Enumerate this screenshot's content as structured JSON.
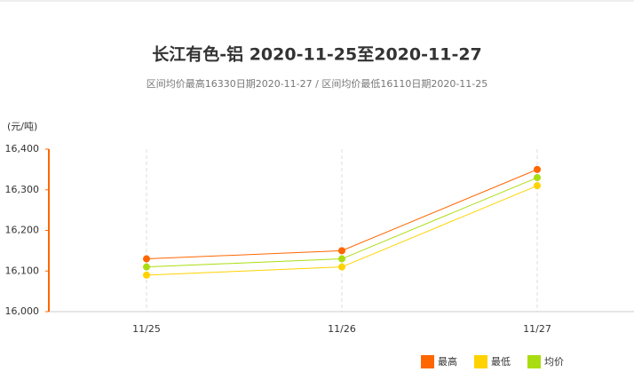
{
  "chart_data": {
    "type": "line",
    "title": "长江有色-铝 2020-11-25至2020-11-27",
    "subtitle": "区间均价最高16330日期2020-11-27 / 区间均价最低16110日期2020-11-25",
    "y_label": "(元/吨)",
    "categories": [
      "11/25",
      "11/26",
      "11/27"
    ],
    "series": [
      {
        "name": "最高",
        "color": "#ff6600",
        "values": [
          16130,
          16150,
          16350
        ]
      },
      {
        "name": "最低",
        "color": "#ffd200",
        "values": [
          16090,
          16110,
          16310
        ]
      },
      {
        "name": "均价",
        "color": "#aadd11",
        "values": [
          16110,
          16130,
          16330
        ]
      }
    ],
    "ylim": [
      16000,
      16400
    ],
    "yticks": [
      {
        "value": 16000,
        "label": "16,000"
      },
      {
        "value": 16100,
        "label": "16,100"
      },
      {
        "value": 16200,
        "label": "16,200"
      },
      {
        "value": 16300,
        "label": "16,300"
      },
      {
        "value": 16400,
        "label": "16,400"
      }
    ],
    "grid": true
  }
}
